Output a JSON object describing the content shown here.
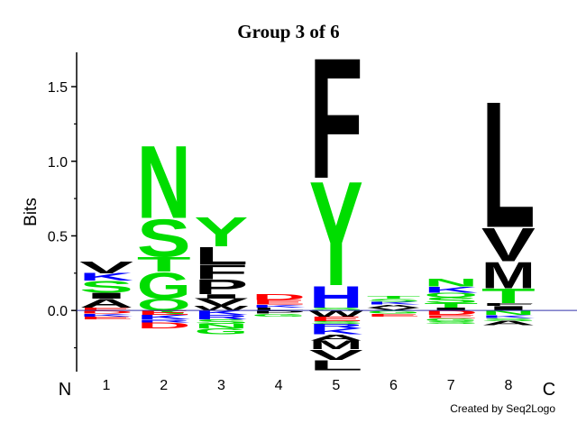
{
  "chart_data": {
    "type": "logo",
    "title": "Group 3 of 6",
    "ylabel": "Bits",
    "start_label": "N",
    "end_label": "C",
    "footer": "Created by Seq2Logo",
    "categories": [
      "1",
      "2",
      "3",
      "4",
      "5",
      "6",
      "7",
      "8"
    ],
    "ylim": [
      -0.41,
      1.73
    ],
    "yticks": [
      {
        "value": 0,
        "label": "0.0"
      },
      {
        "value": 0.5,
        "label": "0.5"
      },
      {
        "value": 1,
        "label": "1.0"
      },
      {
        "value": 1.5,
        "label": "1.5"
      }
    ],
    "yminorticks": [
      -0.25,
      0.25,
      0.75,
      1.25
    ],
    "baseline_color": "#3333aa",
    "letter_colors": {
      "A": "#000000",
      "V": "#000000",
      "L": "#000000",
      "I": "#000000",
      "P": "#000000",
      "F": "#000000",
      "M": "#000000",
      "W": "#000000",
      "G": "#00dd00",
      "S": "#00dd00",
      "T": "#00dd00",
      "Y": "#00dd00",
      "C": "#00dd00",
      "N": "#00dd00",
      "Q": "#00dd00",
      "K": "#0000ff",
      "R": "#0000ff",
      "H": "#0000ff",
      "D": "#ff0000",
      "E": "#ff0000"
    },
    "positions": [
      {
        "letters": [
          {
            "letter": "E",
            "value": 0.02
          },
          {
            "letter": "A",
            "value": 0.06
          },
          {
            "letter": "I",
            "value": 0.04
          },
          {
            "letter": "S",
            "value": 0.08
          },
          {
            "letter": "K",
            "value": 0.05
          },
          {
            "letter": "V",
            "value": 0.08
          },
          {
            "letter": "D",
            "value": -0.02
          },
          {
            "letter": "K",
            "value": -0.02
          },
          {
            "letter": "E",
            "value": -0.02
          }
        ]
      },
      {
        "letters": [
          {
            "letter": "Q",
            "value": 0.08
          },
          {
            "letter": "G",
            "value": 0.18
          },
          {
            "letter": "T",
            "value": 0.1
          },
          {
            "letter": "S",
            "value": 0.26
          },
          {
            "letter": "N",
            "value": 0.5
          },
          {
            "letter": "E",
            "value": -0.03
          },
          {
            "letter": "K",
            "value": -0.03
          },
          {
            "letter": "R",
            "value": -0.02
          },
          {
            "letter": "D",
            "value": -0.04
          }
        ]
      },
      {
        "letters": [
          {
            "letter": "W",
            "value": 0.03
          },
          {
            "letter": "V",
            "value": 0.05
          },
          {
            "letter": "I",
            "value": 0.03
          },
          {
            "letter": "P",
            "value": 0.1
          },
          {
            "letter": "F",
            "value": 0.1
          },
          {
            "letter": "L",
            "value": 0.12
          },
          {
            "letter": "Y",
            "value": 0.2
          },
          {
            "letter": "K",
            "value": -0.03
          },
          {
            "letter": "R",
            "value": -0.03
          },
          {
            "letter": "S",
            "value": -0.03
          },
          {
            "letter": "N",
            "value": -0.03
          },
          {
            "letter": "G",
            "value": -0.04
          }
        ]
      },
      {
        "letters": [
          {
            "letter": "L",
            "value": 0.02
          },
          {
            "letter": "K",
            "value": 0.02
          },
          {
            "letter": "E",
            "value": 0.03
          },
          {
            "letter": "D",
            "value": 0.04
          },
          {
            "letter": "P",
            "value": -0.02
          },
          {
            "letter": "G",
            "value": -0.02
          }
        ]
      },
      {
        "letters": [
          {
            "letter": "S",
            "value": 0.02
          },
          {
            "letter": "H",
            "value": 0.15
          },
          {
            "letter": "Y",
            "value": 0.72
          },
          {
            "letter": "F",
            "value": 0.83
          },
          {
            "letter": "W",
            "value": -0.04
          },
          {
            "letter": "E",
            "value": -0.03
          },
          {
            "letter": "S",
            "value": -0.02
          },
          {
            "letter": "R",
            "value": -0.03
          },
          {
            "letter": "K",
            "value": -0.04
          },
          {
            "letter": "A",
            "value": -0.04
          },
          {
            "letter": "M",
            "value": -0.06
          },
          {
            "letter": "V",
            "value": -0.07
          },
          {
            "letter": "L",
            "value": -0.07
          }
        ]
      },
      {
        "letters": [
          {
            "letter": "V",
            "value": 0.02
          },
          {
            "letter": "A",
            "value": 0.02
          },
          {
            "letter": "K",
            "value": 0.02
          },
          {
            "letter": "S",
            "value": 0.02
          },
          {
            "letter": "T",
            "value": 0.02
          },
          {
            "letter": "G",
            "value": -0.02
          },
          {
            "letter": "E",
            "value": -0.02
          }
        ]
      },
      {
        "letters": [
          {
            "letter": "I",
            "value": 0.02
          },
          {
            "letter": "T",
            "value": 0.03
          },
          {
            "letter": "S",
            "value": 0.04
          },
          {
            "letter": "Q",
            "value": 0.03
          },
          {
            "letter": "K",
            "value": 0.04
          },
          {
            "letter": "N",
            "value": 0.05
          },
          {
            "letter": "D",
            "value": -0.03
          },
          {
            "letter": "E",
            "value": -0.02
          },
          {
            "letter": "G",
            "value": -0.02
          },
          {
            "letter": "S",
            "value": -0.02
          }
        ]
      },
      {
        "letters": [
          {
            "letter": "I",
            "value": 0.03
          },
          {
            "letter": "F",
            "value": 0.02
          },
          {
            "letter": "T",
            "value": 0.1
          },
          {
            "letter": "M",
            "value": 0.18
          },
          {
            "letter": "V",
            "value": 0.23
          },
          {
            "letter": "L",
            "value": 0.87
          },
          {
            "letter": "N",
            "value": -0.03
          },
          {
            "letter": "K",
            "value": -0.02
          },
          {
            "letter": "S",
            "value": -0.02
          },
          {
            "letter": "A",
            "value": -0.03
          }
        ]
      }
    ]
  }
}
